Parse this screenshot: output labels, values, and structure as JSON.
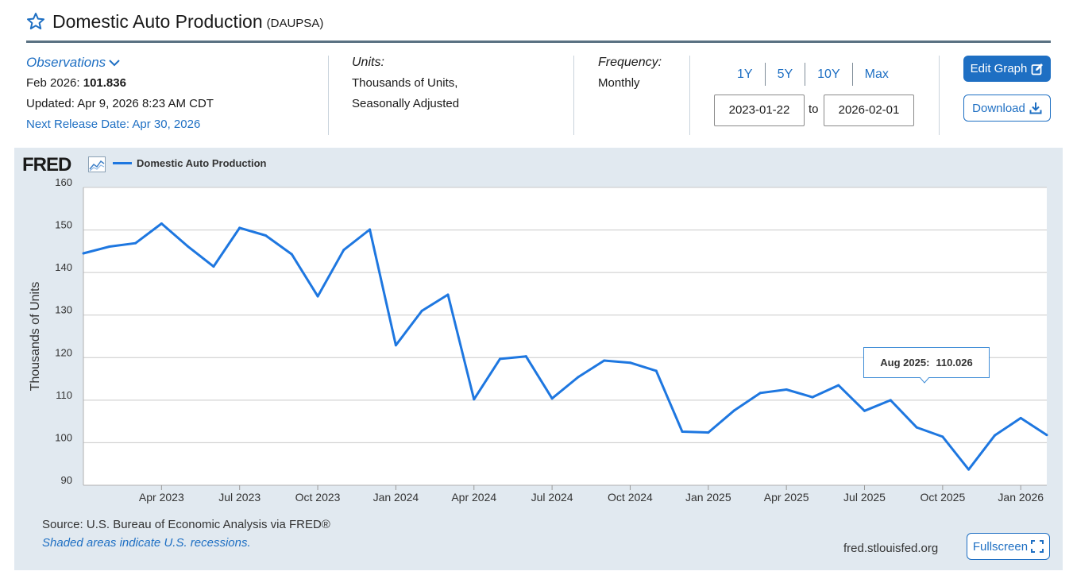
{
  "header": {
    "title": "Domestic Auto Production",
    "series_id": "(DAUPSA)"
  },
  "observations": {
    "label": "Observations",
    "latest_period": "Feb 2026:",
    "latest_value": "101.836",
    "updated": "Updated: Apr 9, 2026 8:23 AM CDT",
    "next_release": "Next Release Date: Apr 30, 2026"
  },
  "units": {
    "label": "Units:",
    "line1": "Thousands of Units,",
    "line2": "Seasonally Adjusted"
  },
  "frequency": {
    "label": "Frequency:",
    "value": "Monthly"
  },
  "range": {
    "buttons": [
      "1Y",
      "5Y",
      "10Y",
      "Max"
    ],
    "start": "2023-01-22",
    "to": "to",
    "end": "2026-02-01"
  },
  "actions": {
    "edit": "Edit Graph",
    "download": "Download",
    "fullscreen": "Fullscreen"
  },
  "footer": {
    "source": "Source: U.S. Bureau of Economic Analysis via FRED®",
    "recession": "Shaded areas indicate U.S. recessions.",
    "url": "fred.stlouisfed.org"
  },
  "tooltip": {
    "label": "Aug 2025:",
    "value": "110.026"
  },
  "logo": {
    "text": "FRED"
  },
  "colors": {
    "accent": "#1e6fc3",
    "series": "#1e77e0",
    "panel": "#e1e9f0"
  },
  "icons": {
    "favorite": "star-icon",
    "observations": "chevron-down-icon",
    "edit": "edit-icon",
    "download": "download-icon",
    "fullscreen": "fullscreen-icon",
    "logo": "line-chart-icon"
  },
  "chart_data": {
    "type": "line",
    "title": "",
    "xlabel": "",
    "ylabel": "Thousands of Units",
    "ylim": [
      90,
      160
    ],
    "yticks": [
      90,
      100,
      110,
      120,
      130,
      140,
      150,
      160
    ],
    "xlim": [
      "2023-01",
      "2026-02"
    ],
    "xticks": [
      {
        "date": "2023-04",
        "label": "Apr 2023"
      },
      {
        "date": "2023-07",
        "label": "Jul 2023"
      },
      {
        "date": "2023-10",
        "label": "Oct 2023"
      },
      {
        "date": "2024-01",
        "label": "Jan 2024"
      },
      {
        "date": "2024-04",
        "label": "Apr 2024"
      },
      {
        "date": "2024-07",
        "label": "Jul 2024"
      },
      {
        "date": "2024-10",
        "label": "Oct 2024"
      },
      {
        "date": "2025-01",
        "label": "Jan 2025"
      },
      {
        "date": "2025-04",
        "label": "Apr 2025"
      },
      {
        "date": "2025-07",
        "label": "Jul 2025"
      },
      {
        "date": "2025-10",
        "label": "Oct 2025"
      },
      {
        "date": "2026-01",
        "label": "Jan 2026"
      }
    ],
    "grid": true,
    "legend": "top-left",
    "series": [
      {
        "name": "Domestic Auto Production",
        "x": [
          "2023-01",
          "2023-02",
          "2023-03",
          "2023-04",
          "2023-05",
          "2023-06",
          "2023-07",
          "2023-08",
          "2023-09",
          "2023-10",
          "2023-11",
          "2023-12",
          "2024-01",
          "2024-02",
          "2024-03",
          "2024-04",
          "2024-05",
          "2024-06",
          "2024-07",
          "2024-08",
          "2024-09",
          "2024-10",
          "2024-11",
          "2024-12",
          "2025-01",
          "2025-02",
          "2025-03",
          "2025-04",
          "2025-05",
          "2025-06",
          "2025-07",
          "2025-08",
          "2025-09",
          "2025-10",
          "2025-11",
          "2025-12",
          "2026-01",
          "2026-02"
        ],
        "values": [
          144.5,
          146.1,
          146.9,
          151.5,
          146.2,
          141.4,
          150.5,
          148.7,
          144.3,
          134.4,
          145.3,
          150.1,
          122.9,
          131.0,
          134.8,
          110.2,
          119.7,
          120.3,
          110.4,
          115.4,
          119.3,
          118.8,
          116.9,
          102.6,
          102.4,
          107.6,
          111.7,
          112.5,
          110.7,
          113.5,
          107.5,
          110.0,
          103.6,
          101.4,
          93.7,
          101.7,
          105.8,
          101.8
        ]
      }
    ]
  }
}
